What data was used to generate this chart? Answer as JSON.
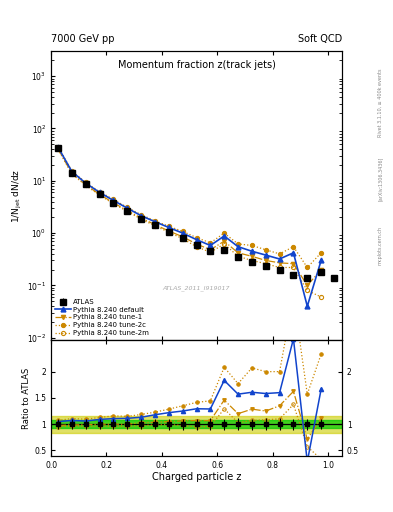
{
  "title_top": "7000 GeV pp",
  "title_right": "Soft QCD",
  "plot_title": "Momentum fraction z(track jets)",
  "xlabel": "Charged particle z",
  "ylabel_main": "1/N$_\\mathrm{jet}$ dN/dz",
  "ylabel_ratio": "Ratio to ATLAS",
  "watermark": "ATLAS_2011_I919017",
  "rivet_label": "Rivet 3.1.10, ≥ 400k events",
  "arxiv_label": "[arXiv:1306.3436]",
  "mcplots_label": "mcplots.cern.ch",
  "xlim": [
    0.0,
    1.05
  ],
  "ylim_main_log": [
    0.009,
    3000
  ],
  "ylim_ratio": [
    0.4,
    2.6
  ],
  "atlas_x": [
    0.025,
    0.075,
    0.125,
    0.175,
    0.225,
    0.275,
    0.325,
    0.375,
    0.425,
    0.475,
    0.525,
    0.575,
    0.625,
    0.675,
    0.725,
    0.775,
    0.825,
    0.875,
    0.925,
    0.975,
    1.02
  ],
  "atlas_y": [
    42.0,
    14.0,
    8.5,
    5.5,
    3.8,
    2.7,
    1.9,
    1.4,
    1.05,
    0.8,
    0.58,
    0.45,
    0.48,
    0.35,
    0.28,
    0.24,
    0.2,
    0.16,
    0.14,
    0.18,
    0.14
  ],
  "atlas_yerr": [
    4.0,
    1.4,
    0.85,
    0.55,
    0.38,
    0.27,
    0.19,
    0.14,
    0.11,
    0.085,
    0.062,
    0.05,
    0.05,
    0.038,
    0.03,
    0.028,
    0.022,
    0.017,
    0.015,
    0.018,
    0.015
  ],
  "pythia_default_x": [
    0.025,
    0.075,
    0.125,
    0.175,
    0.225,
    0.275,
    0.325,
    0.375,
    0.425,
    0.475,
    0.525,
    0.575,
    0.625,
    0.675,
    0.725,
    0.775,
    0.825,
    0.875,
    0.925,
    0.975
  ],
  "pythia_default_y": [
    44.0,
    15.0,
    9.0,
    6.0,
    4.2,
    3.0,
    2.15,
    1.65,
    1.28,
    1.0,
    0.75,
    0.58,
    0.88,
    0.55,
    0.45,
    0.38,
    0.32,
    0.42,
    0.04,
    0.3
  ],
  "pythia_tune1_x": [
    0.025,
    0.075,
    0.125,
    0.175,
    0.225,
    0.275,
    0.325,
    0.375,
    0.425,
    0.475,
    0.525,
    0.575,
    0.625,
    0.675,
    0.725,
    0.775,
    0.825,
    0.875,
    0.925,
    0.975
  ],
  "pythia_tune1_y": [
    41.0,
    13.8,
    8.4,
    5.5,
    3.8,
    2.7,
    1.95,
    1.45,
    1.1,
    0.85,
    0.62,
    0.48,
    0.7,
    0.42,
    0.36,
    0.3,
    0.27,
    0.26,
    0.1,
    0.2
  ],
  "pythia_tune2c_x": [
    0.025,
    0.075,
    0.125,
    0.175,
    0.225,
    0.275,
    0.325,
    0.375,
    0.425,
    0.475,
    0.525,
    0.575,
    0.625,
    0.675,
    0.725,
    0.775,
    0.825,
    0.875,
    0.925,
    0.975
  ],
  "pythia_tune2c_y": [
    45.0,
    15.5,
    9.3,
    6.2,
    4.4,
    3.1,
    2.25,
    1.72,
    1.35,
    1.08,
    0.82,
    0.65,
    1.0,
    0.62,
    0.58,
    0.48,
    0.4,
    0.55,
    0.22,
    0.42
  ],
  "pythia_tune2m_x": [
    0.025,
    0.075,
    0.125,
    0.175,
    0.225,
    0.275,
    0.325,
    0.375,
    0.425,
    0.475,
    0.525,
    0.575,
    0.625,
    0.675,
    0.725,
    0.775,
    0.825,
    0.875,
    0.925,
    0.975
  ],
  "pythia_tune2m_y": [
    40.0,
    13.5,
    8.2,
    5.3,
    3.65,
    2.6,
    1.85,
    1.38,
    1.04,
    0.78,
    0.55,
    0.43,
    0.62,
    0.36,
    0.3,
    0.26,
    0.22,
    0.22,
    0.08,
    0.06
  ],
  "color_atlas": "#000000",
  "color_default": "#1144cc",
  "color_tune1": "#cc8800",
  "color_tune2c": "#cc8800",
  "color_tune2m": "#cc8800",
  "green_color": "#00cc00",
  "yellow_color": "#cccc00",
  "green_band_half": 0.08,
  "yellow_band_half": 0.16
}
